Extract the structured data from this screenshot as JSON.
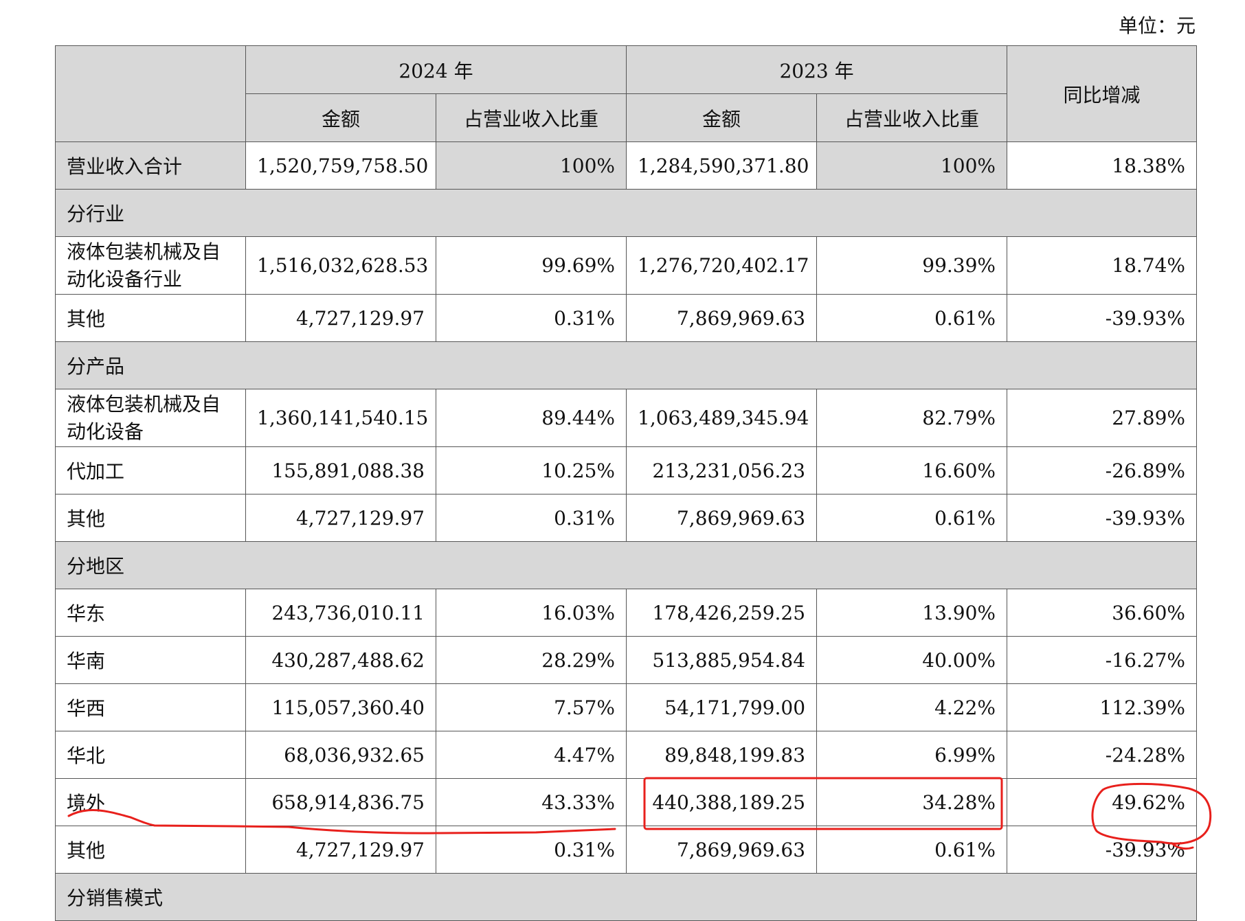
{
  "unit_note": "单位：元",
  "header": {
    "year_2024": "2024 年",
    "year_2023": "2023 年",
    "amount": "金额",
    "share": "占营业收入比重",
    "yoy": "同比增减"
  },
  "total": {
    "label": "营业收入合计",
    "amount_2024": "1,520,759,758.50",
    "share_2024": "100%",
    "amount_2023": "1,284,590,371.80",
    "share_2023": "100%",
    "yoy": "18.38%"
  },
  "sections": [
    {
      "title": "分行业",
      "rows": [
        {
          "label": "液体包装机械及自动化设备行业",
          "amount_2024": "1,516,032,628.53",
          "share_2024": "99.69%",
          "amount_2023": "1,276,720,402.17",
          "share_2023": "99.39%",
          "yoy": "18.74%"
        },
        {
          "label": "其他",
          "amount_2024": "4,727,129.97",
          "share_2024": "0.31%",
          "amount_2023": "7,869,969.63",
          "share_2023": "0.61%",
          "yoy": "-39.93%"
        }
      ]
    },
    {
      "title": "分产品",
      "rows": [
        {
          "label": "液体包装机械及自动化设备",
          "amount_2024": "1,360,141,540.15",
          "share_2024": "89.44%",
          "amount_2023": "1,063,489,345.94",
          "share_2023": "82.79%",
          "yoy": "27.89%"
        },
        {
          "label": "代加工",
          "amount_2024": "155,891,088.38",
          "share_2024": "10.25%",
          "amount_2023": "213,231,056.23",
          "share_2023": "16.60%",
          "yoy": "-26.89%"
        },
        {
          "label": "其他",
          "amount_2024": "4,727,129.97",
          "share_2024": "0.31%",
          "amount_2023": "7,869,969.63",
          "share_2023": "0.61%",
          "yoy": "-39.93%"
        }
      ]
    },
    {
      "title": "分地区",
      "rows": [
        {
          "label": "华东",
          "amount_2024": "243,736,010.11",
          "share_2024": "16.03%",
          "amount_2023": "178,426,259.25",
          "share_2023": "13.90%",
          "yoy": "36.60%"
        },
        {
          "label": "华南",
          "amount_2024": "430,287,488.62",
          "share_2024": "28.29%",
          "amount_2023": "513,885,954.84",
          "share_2023": "40.00%",
          "yoy": "-16.27%"
        },
        {
          "label": "华西",
          "amount_2024": "115,057,360.40",
          "share_2024": "7.57%",
          "amount_2023": "54,171,799.00",
          "share_2023": "4.22%",
          "yoy": "112.39%"
        },
        {
          "label": "华北",
          "amount_2024": "68,036,932.65",
          "share_2024": "4.47%",
          "amount_2023": "89,848,199.83",
          "share_2023": "6.99%",
          "yoy": "-24.28%"
        },
        {
          "label": "境外",
          "amount_2024": "658,914,836.75",
          "share_2024": "43.33%",
          "amount_2023": "440,388,189.25",
          "share_2023": "34.28%",
          "yoy": "49.62%"
        },
        {
          "label": "其他",
          "amount_2024": "4,727,129.97",
          "share_2024": "0.31%",
          "amount_2023": "7,869,969.63",
          "share_2023": "0.61%",
          "yoy": "-39.93%"
        }
      ]
    },
    {
      "title": "分销售模式",
      "rows": []
    }
  ],
  "annotation_color": "#e8201c"
}
